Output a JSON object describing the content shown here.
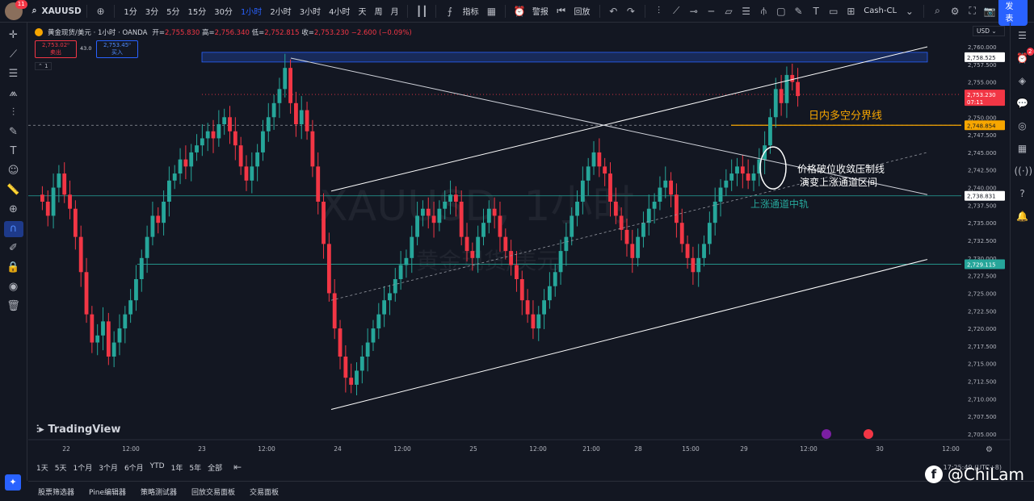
{
  "topbar": {
    "avatar_badge": "11",
    "symbol": "XAUUSD",
    "intervals": [
      "1分",
      "3分",
      "5分",
      "15分",
      "30分",
      "1小时",
      "2小时",
      "3小时",
      "4小时",
      "天",
      "周",
      "月"
    ],
    "active_interval": "1小时",
    "indicators_label": "指标",
    "alert_label": "警报",
    "replay_label": "回放",
    "layout_name": "Cash-CL",
    "publish_label": "发表"
  },
  "legend": {
    "title": "黄金现货/美元 · 1小时 · OANDA",
    "open_label": "开=",
    "open": "2,755.830",
    "high_label": "高=",
    "high": "2,756.340",
    "low_label": "低=",
    "low": "2,752.815",
    "close_label": "收=",
    "close": "2,753.230",
    "change": "−2.600 (−0.09%)",
    "sell_price": "2,753.02⁰",
    "sell_label": "卖出",
    "buy_price": "2,753.45⁰",
    "buy_label": "买入",
    "spread": "43.0",
    "collapse": "1"
  },
  "currency": "USD",
  "brand": "TradingView",
  "watermark": {
    "symbol": "XAUUSD, 1小时",
    "name": "黄金现货/美元"
  },
  "annotations": {
    "boundary_label": "日内多空分界线",
    "breakout_note_1": "价格破位收敛压制线",
    "breakout_note_2": "演变上涨通道区间",
    "mid_rail_label": "上涨通道中轨"
  },
  "price_labels": {
    "top_line": "2,758.525",
    "last": "2,753.230",
    "countdown": "07:11",
    "boundary": "2,748.854",
    "mid": "2,738.831",
    "low_line": "2,729.115"
  },
  "chart_data": {
    "type": "candlestick",
    "y_axis_ticks": [
      "2,760.000",
      "2,757.500",
      "2,755.000",
      "2,752.500",
      "2,750.000",
      "2,747.500",
      "2,745.000",
      "2,742.500",
      "2,740.000",
      "2,737.500",
      "2,735.000",
      "2,732.500",
      "2,730.000",
      "2,727.500",
      "2,725.000",
      "2,722.500",
      "2,720.000",
      "2,717.500",
      "2,715.000",
      "2,712.500",
      "2,710.000",
      "2,707.500",
      "2,705.000"
    ],
    "x_axis_ticks": [
      "22",
      "12:00",
      "23",
      "12:00",
      "24",
      "12:00",
      "25",
      "12:00",
      "21:00",
      "28",
      "15:00",
      "29",
      "12:00",
      "30",
      "12:00"
    ],
    "ylim": [
      2705,
      2760
    ],
    "horizontal_levels": [
      2758.525,
      2748.854,
      2738.831,
      2729.115
    ],
    "closes": [
      2738,
      2736,
      2740,
      2742,
      2739,
      2737,
      2733,
      2728,
      2722,
      2718,
      2719,
      2721,
      2716,
      2718,
      2720,
      2722,
      2724,
      2727,
      2730,
      2733,
      2736,
      2735,
      2738,
      2741,
      2742,
      2744,
      2743,
      2745,
      2746,
      2747,
      2748,
      2747,
      2749,
      2750,
      2748,
      2746,
      2743,
      2741,
      2743,
      2745,
      2748,
      2750,
      2752,
      2754,
      2757,
      2752,
      2749,
      2751,
      2748,
      2743,
      2738,
      2732,
      2725,
      2720,
      2716,
      2713,
      2712,
      2714,
      2716,
      2718,
      2720,
      2722,
      2724,
      2725,
      2727,
      2729,
      2730,
      2733,
      2736,
      2737,
      2736,
      2735,
      2737,
      2738,
      2739,
      2738,
      2733,
      2731,
      2730,
      2733,
      2735,
      2737,
      2736,
      2733,
      2731,
      2729,
      2727,
      2724,
      2722,
      2720,
      2722,
      2724,
      2726,
      2728,
      2731,
      2733,
      2736,
      2738,
      2741,
      2743,
      2745,
      2743,
      2742,
      2738,
      2736,
      2734,
      2732,
      2730,
      2733,
      2735,
      2737,
      2738,
      2740,
      2741,
      2739,
      2735,
      2732,
      2730,
      2728,
      2730,
      2732,
      2735,
      2738,
      2740,
      2741,
      2742,
      2743,
      2742,
      2741,
      2742,
      2744,
      2746,
      2750,
      2754,
      2752,
      2756,
      2755,
      2753
    ]
  },
  "range_bar": [
    "1天",
    "5天",
    "1个月",
    "3个月",
    "6个月",
    "YTD",
    "1年",
    "5年",
    "全部"
  ],
  "utc_label": "17:25:49 (UTC+8)",
  "bottom_tabs": [
    "股票筛选器",
    "Pine编辑器",
    "策略测试器",
    "回放交易面板",
    "交易面板"
  ],
  "social": "@ChiLam",
  "colors": {
    "up": "#26a69a",
    "down": "#f23645",
    "boundary": "#f7a600",
    "channel": "#ffffff",
    "level": "#26a69a",
    "bg": "#131722"
  }
}
